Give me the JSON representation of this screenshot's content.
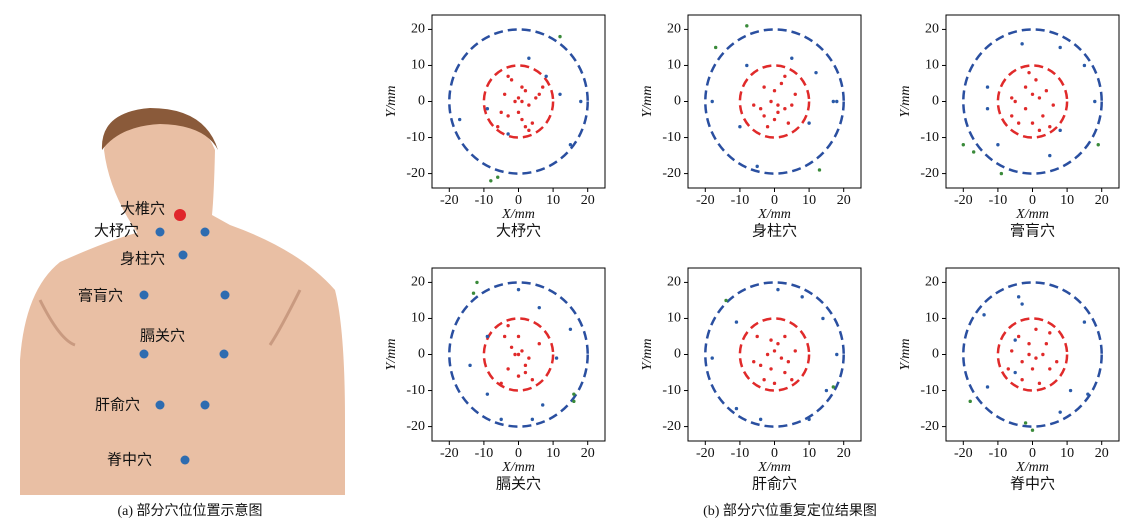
{
  "illustration": {
    "labels": [
      "大椎穴",
      "大杼穴",
      "身柱穴",
      "膏肓穴",
      "膈关穴",
      "肝俞穴",
      "脊中穴"
    ],
    "caption": "(a) 部分穴位位置示意图"
  },
  "figure_caption": "(b) 部分穴位重复定位结果图",
  "chart_data": [
    {
      "type": "scatter",
      "title": "大杼穴",
      "xlabel": "X/mm",
      "ylabel": "Y/mm",
      "xlim": [
        -25,
        25
      ],
      "ylim": [
        -24,
        24
      ],
      "xticks": [
        -20,
        -10,
        0,
        10,
        20
      ],
      "yticks": [
        -20,
        -10,
        0,
        10,
        20
      ],
      "circles": [
        {
          "radius": 10,
          "color": "#e02a2a"
        },
        {
          "radius": 20,
          "color": "#2a4fa0"
        }
      ],
      "series": [
        {
          "color": "#e02a2a",
          "x": [
            -3,
            -2,
            1,
            2,
            -1,
            0,
            1,
            3,
            -5,
            -3,
            1,
            2,
            4,
            -6,
            6,
            7,
            5,
            -4,
            3,
            0
          ],
          "y": [
            7,
            6,
            4,
            3,
            0,
            1,
            0,
            -1,
            -3,
            -4,
            -5,
            -7,
            -6,
            -7,
            2,
            4,
            1,
            2,
            -8,
            -3
          ]
        },
        {
          "color": "#2a5aa8",
          "x": [
            -17,
            3,
            8,
            18,
            15,
            -9,
            -3,
            12
          ],
          "y": [
            -5,
            12,
            7,
            0,
            -12,
            -2,
            -9,
            2
          ]
        },
        {
          "color": "#3a8a3a",
          "x": [
            12,
            -8,
            -6
          ],
          "y": [
            18,
            -22,
            -21
          ]
        }
      ]
    },
    {
      "type": "scatter",
      "title": "身柱穴",
      "xlabel": "X/mm",
      "ylabel": "Y/mm",
      "xlim": [
        -25,
        25
      ],
      "ylim": [
        -24,
        24
      ],
      "xticks": [
        -20,
        -10,
        0,
        10,
        20
      ],
      "yticks": [
        -20,
        -10,
        0,
        10,
        20
      ],
      "circles": [
        {
          "radius": 10,
          "color": "#e02a2a"
        },
        {
          "radius": 20,
          "color": "#2a4fa0"
        }
      ],
      "series": [
        {
          "color": "#e02a2a",
          "x": [
            -3,
            0,
            2,
            -1,
            1,
            3,
            -4,
            0,
            4,
            -2,
            -6,
            6,
            3,
            1,
            -3,
            5
          ],
          "y": [
            4,
            3,
            5,
            0,
            -1,
            -2,
            -2,
            -5,
            -6,
            -7,
            -1,
            2,
            7,
            -3,
            -4,
            -1
          ]
        },
        {
          "color": "#2a5aa8",
          "x": [
            -18,
            -8,
            5,
            12,
            17,
            18,
            10,
            -10,
            -5
          ],
          "y": [
            0,
            10,
            12,
            8,
            0,
            0,
            -6,
            -7,
            -18
          ]
        },
        {
          "color": "#3a8a3a",
          "x": [
            -8,
            -17,
            13
          ],
          "y": [
            21,
            15,
            -19
          ]
        }
      ]
    },
    {
      "type": "scatter",
      "title": "膏肓穴",
      "xlabel": "X/mm",
      "ylabel": "Y/mm",
      "xlim": [
        -25,
        25
      ],
      "ylim": [
        -24,
        24
      ],
      "xticks": [
        -20,
        -10,
        0,
        10,
        20
      ],
      "yticks": [
        -20,
        -10,
        0,
        10,
        20
      ],
      "circles": [
        {
          "radius": 10,
          "color": "#e02a2a"
        },
        {
          "radius": 20,
          "color": "#2a4fa0"
        }
      ],
      "series": [
        {
          "color": "#e02a2a",
          "x": [
            -1,
            1,
            -2,
            0,
            2,
            -5,
            -6,
            4,
            6,
            3,
            0,
            -4,
            -6,
            2,
            5,
            -2
          ],
          "y": [
            8,
            6,
            4,
            2,
            1,
            0,
            1,
            3,
            -1,
            -4,
            -6,
            -6,
            -4,
            -8,
            -7,
            -2
          ]
        },
        {
          "color": "#2a5aa8",
          "x": [
            -13,
            -13,
            -3,
            8,
            15,
            18,
            8,
            -10,
            5
          ],
          "y": [
            4,
            -2,
            16,
            15,
            10,
            0,
            -8,
            -12,
            -15
          ]
        },
        {
          "color": "#3a8a3a",
          "x": [
            -20,
            -17,
            -9,
            19
          ],
          "y": [
            -12,
            -14,
            -20,
            -12
          ]
        }
      ]
    },
    {
      "type": "scatter",
      "title": "膈关穴",
      "xlabel": "X/mm",
      "ylabel": "Y/mm",
      "xlim": [
        -25,
        25
      ],
      "ylim": [
        -24,
        24
      ],
      "xticks": [
        -20,
        -10,
        0,
        10,
        20
      ],
      "yticks": [
        -20,
        -10,
        0,
        10,
        20
      ],
      "circles": [
        {
          "radius": 10,
          "color": "#e02a2a"
        },
        {
          "radius": 20,
          "color": "#2a4fa0"
        }
      ],
      "series": [
        {
          "color": "#e02a2a",
          "x": [
            -3,
            0,
            -2,
            1,
            0,
            -1,
            3,
            2,
            -3,
            0,
            4,
            -5,
            6,
            -4,
            2
          ],
          "y": [
            8,
            5,
            2,
            1,
            0,
            0,
            -1,
            -3,
            -4,
            -6,
            -7,
            -8,
            3,
            5,
            -5
          ]
        },
        {
          "color": "#2a5aa8",
          "x": [
            -9,
            -14,
            -9,
            -5,
            4,
            7,
            11,
            15,
            6,
            0
          ],
          "y": [
            5,
            -3,
            -11,
            -18,
            -18,
            -14,
            -1,
            7,
            13,
            18
          ]
        },
        {
          "color": "#3a8a3a",
          "x": [
            -12,
            -13,
            16,
            16
          ],
          "y": [
            20,
            17,
            -11,
            -13
          ]
        }
      ]
    },
    {
      "type": "scatter",
      "title": "肝俞穴",
      "xlabel": "X/mm",
      "ylabel": "Y/mm",
      "xlim": [
        -25,
        25
      ],
      "ylim": [
        -24,
        24
      ],
      "xticks": [
        -20,
        -10,
        0,
        10,
        20
      ],
      "yticks": [
        -20,
        -10,
        0,
        10,
        20
      ],
      "circles": [
        {
          "radius": 10,
          "color": "#e02a2a"
        },
        {
          "radius": 20,
          "color": "#2a4fa0"
        }
      ],
      "series": [
        {
          "color": "#e02a2a",
          "x": [
            -5,
            -1,
            1,
            3,
            -2,
            0,
            2,
            4,
            -4,
            -1,
            3,
            -6,
            0,
            5,
            -3,
            6
          ],
          "y": [
            5,
            4,
            3,
            5,
            0,
            1,
            -1,
            -2,
            -3,
            -4,
            -5,
            -2,
            -8,
            -7,
            -7,
            1
          ]
        },
        {
          "color": "#2a5aa8",
          "x": [
            -18,
            -11,
            -11,
            1,
            8,
            14,
            18,
            15,
            10,
            -4
          ],
          "y": [
            -1,
            -15,
            9,
            18,
            16,
            10,
            0,
            -10,
            -18,
            -18
          ]
        },
        {
          "color": "#3a8a3a",
          "x": [
            -14,
            17
          ],
          "y": [
            15,
            -9
          ]
        }
      ]
    },
    {
      "type": "scatter",
      "title": "脊中穴",
      "xlabel": "X/mm",
      "ylabel": "Y/mm",
      "xlim": [
        -25,
        25
      ],
      "ylim": [
        -24,
        24
      ],
      "xticks": [
        -20,
        -10,
        0,
        10,
        20
      ],
      "yticks": [
        -20,
        -10,
        0,
        10,
        20
      ],
      "circles": [
        {
          "radius": 10,
          "color": "#e02a2a"
        },
        {
          "radius": 20,
          "color": "#2a4fa0"
        }
      ],
      "series": [
        {
          "color": "#e02a2a",
          "x": [
            -4,
            -1,
            1,
            4,
            -6,
            -1,
            1,
            3,
            -3,
            0,
            5,
            -3,
            2,
            7,
            -7,
            5
          ],
          "y": [
            5,
            3,
            7,
            3,
            1,
            0,
            -1,
            0,
            -2,
            -4,
            -4,
            -7,
            -8,
            -2,
            -4,
            6
          ]
        },
        {
          "color": "#2a5aa8",
          "x": [
            -14,
            -5,
            -5,
            -13,
            -3,
            -4,
            11,
            15,
            16,
            8
          ],
          "y": [
            11,
            4,
            -5,
            -9,
            14,
            16,
            -10,
            9,
            -11,
            -16
          ]
        },
        {
          "color": "#3a8a3a",
          "x": [
            -18,
            0,
            -2
          ],
          "y": [
            -13,
            -21,
            -19
          ]
        }
      ]
    }
  ]
}
